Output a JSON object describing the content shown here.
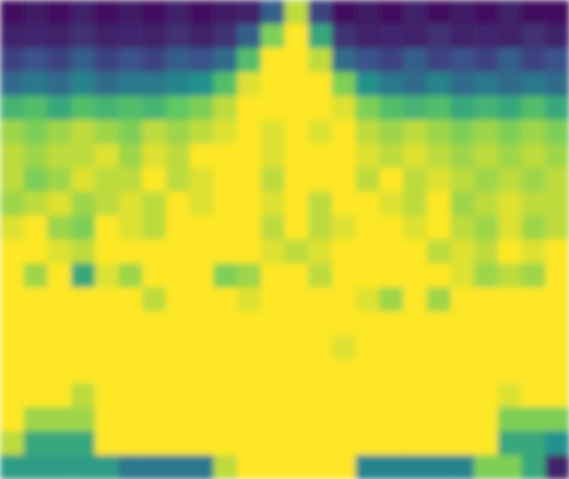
{
  "chart_data": {
    "type": "heatmap",
    "tick_labels": false,
    "color_range": [
      0,
      1
    ],
    "cells": [
      [
        0.05,
        0.08,
        0.05,
        0.1,
        0.05,
        0.08,
        0.05,
        0.1,
        0.05,
        0.08,
        0.1,
        0.3,
        0.9,
        0.2,
        0.05,
        0.08,
        0.05,
        0.1,
        0.05,
        0.08,
        0.05,
        0.1,
        0.05,
        0.05
      ],
      [
        0.1,
        0.12,
        0.1,
        0.15,
        0.1,
        0.12,
        0.1,
        0.15,
        0.1,
        0.15,
        0.3,
        0.8,
        1,
        0.6,
        0.15,
        0.1,
        0.12,
        0.1,
        0.15,
        0.1,
        0.12,
        0.1,
        0.15,
        0.1
      ],
      [
        0.2,
        0.25,
        0.2,
        0.3,
        0.2,
        0.25,
        0.2,
        0.3,
        0.25,
        0.35,
        0.7,
        1,
        1,
        0.9,
        0.35,
        0.25,
        0.2,
        0.3,
        0.2,
        0.25,
        0.2,
        0.3,
        0.2,
        0.25
      ],
      [
        0.35,
        0.4,
        0.35,
        0.45,
        0.35,
        0.4,
        0.4,
        0.45,
        0.5,
        0.7,
        0.95,
        1,
        1,
        1,
        0.8,
        0.5,
        0.4,
        0.35,
        0.45,
        0.35,
        0.4,
        0.35,
        0.4,
        0.35
      ],
      [
        0.65,
        0.7,
        0.6,
        0.7,
        0.65,
        0.7,
        0.65,
        0.75,
        0.8,
        0.9,
        1,
        1,
        1,
        1,
        0.95,
        0.8,
        0.7,
        0.65,
        0.7,
        0.6,
        0.65,
        0.6,
        0.7,
        0.6
      ],
      [
        0.85,
        0.8,
        0.85,
        0.9,
        0.85,
        0.8,
        0.9,
        0.85,
        0.9,
        0.95,
        1,
        0.95,
        1,
        0.95,
        1,
        0.9,
        0.85,
        0.9,
        0.85,
        0.8,
        0.85,
        0.8,
        0.85,
        0.8
      ],
      [
        0.9,
        0.85,
        0.9,
        0.9,
        0.95,
        0.85,
        0.95,
        0.9,
        1,
        1,
        1,
        0.95,
        1,
        1,
        1,
        0.95,
        0.9,
        0.95,
        0.9,
        0.85,
        0.9,
        0.85,
        0.9,
        0.85
      ],
      [
        0.9,
        0.8,
        0.85,
        0.95,
        0.9,
        0.9,
        1,
        0.9,
        0.95,
        1,
        1,
        0.9,
        1,
        1,
        1,
        0.9,
        1,
        0.9,
        0.95,
        0.9,
        0.85,
        0.9,
        0.85,
        0.9
      ],
      [
        0.85,
        0.9,
        0.95,
        0.85,
        0.9,
        0.95,
        0.9,
        1,
        0.95,
        1,
        1,
        0.95,
        1,
        0.9,
        1,
        1,
        0.95,
        0.9,
        1,
        0.85,
        0.9,
        0.95,
        0.9,
        0.9
      ],
      [
        0.95,
        1,
        0.85,
        0.8,
        1,
        0.95,
        0.9,
        1,
        1,
        1,
        1,
        0.9,
        1,
        0.9,
        0.95,
        1,
        1,
        0.95,
        1,
        0.9,
        0.85,
        0.95,
        0.85,
        0.9
      ],
      [
        1,
        1,
        0.95,
        0.9,
        1,
        1,
        1,
        1,
        1,
        1,
        1,
        0.95,
        0.9,
        0.95,
        1,
        1,
        1,
        1,
        0.9,
        0.95,
        0.9,
        1,
        0.95,
        1
      ],
      [
        1,
        0.85,
        1,
        0.6,
        0.95,
        0.85,
        1,
        1,
        1,
        0.8,
        0.85,
        1,
        1,
        0.9,
        1,
        1,
        1,
        1,
        1,
        0.95,
        0.85,
        0.9,
        0.85,
        1
      ],
      [
        1,
        1,
        1,
        1,
        1,
        1,
        0.9,
        1,
        1,
        1,
        0.95,
        1,
        1,
        1,
        1,
        0.95,
        0.85,
        1,
        0.85,
        1,
        1,
        1,
        1,
        1
      ],
      [
        1,
        1,
        1,
        1,
        1,
        1,
        1,
        1,
        1,
        1,
        1,
        1,
        1,
        1,
        1,
        1,
        1,
        1,
        1,
        1,
        1,
        1,
        1,
        1
      ],
      [
        1,
        1,
        1,
        1,
        1,
        1,
        1,
        1,
        1,
        1,
        1,
        1,
        1,
        1,
        0.95,
        1,
        1,
        1,
        1,
        1,
        1,
        1,
        1,
        1
      ],
      [
        1,
        1,
        1,
        1,
        1,
        1,
        1,
        1,
        1,
        1,
        1,
        1,
        1,
        1,
        1,
        1,
        1,
        1,
        1,
        1,
        1,
        1,
        1,
        1
      ],
      [
        1,
        1,
        1,
        0.9,
        1,
        1,
        1,
        1,
        1,
        1,
        1,
        1,
        1,
        1,
        1,
        1,
        1,
        1,
        1,
        1,
        1,
        0.95,
        1,
        1
      ],
      [
        1,
        0.85,
        0.85,
        0.85,
        1,
        1,
        1,
        1,
        1,
        1,
        1,
        1,
        1,
        1,
        1,
        1,
        1,
        1,
        1,
        1,
        1,
        0.8,
        0.8,
        0.8
      ],
      [
        0.9,
        0.6,
        0.6,
        0.6,
        1,
        1,
        1,
        1,
        1,
        1,
        1,
        1,
        1,
        1,
        1,
        1,
        1,
        1,
        1,
        1,
        1,
        0.6,
        0.6,
        0.5
      ],
      [
        0.55,
        0.55,
        0.55,
        0.55,
        0.55,
        0.4,
        0.4,
        0.4,
        0.4,
        0.9,
        1,
        1,
        1,
        1,
        1,
        0.45,
        0.45,
        0.45,
        0.45,
        0.45,
        0.8,
        0.8,
        0.6,
        0.1
      ]
    ]
  }
}
